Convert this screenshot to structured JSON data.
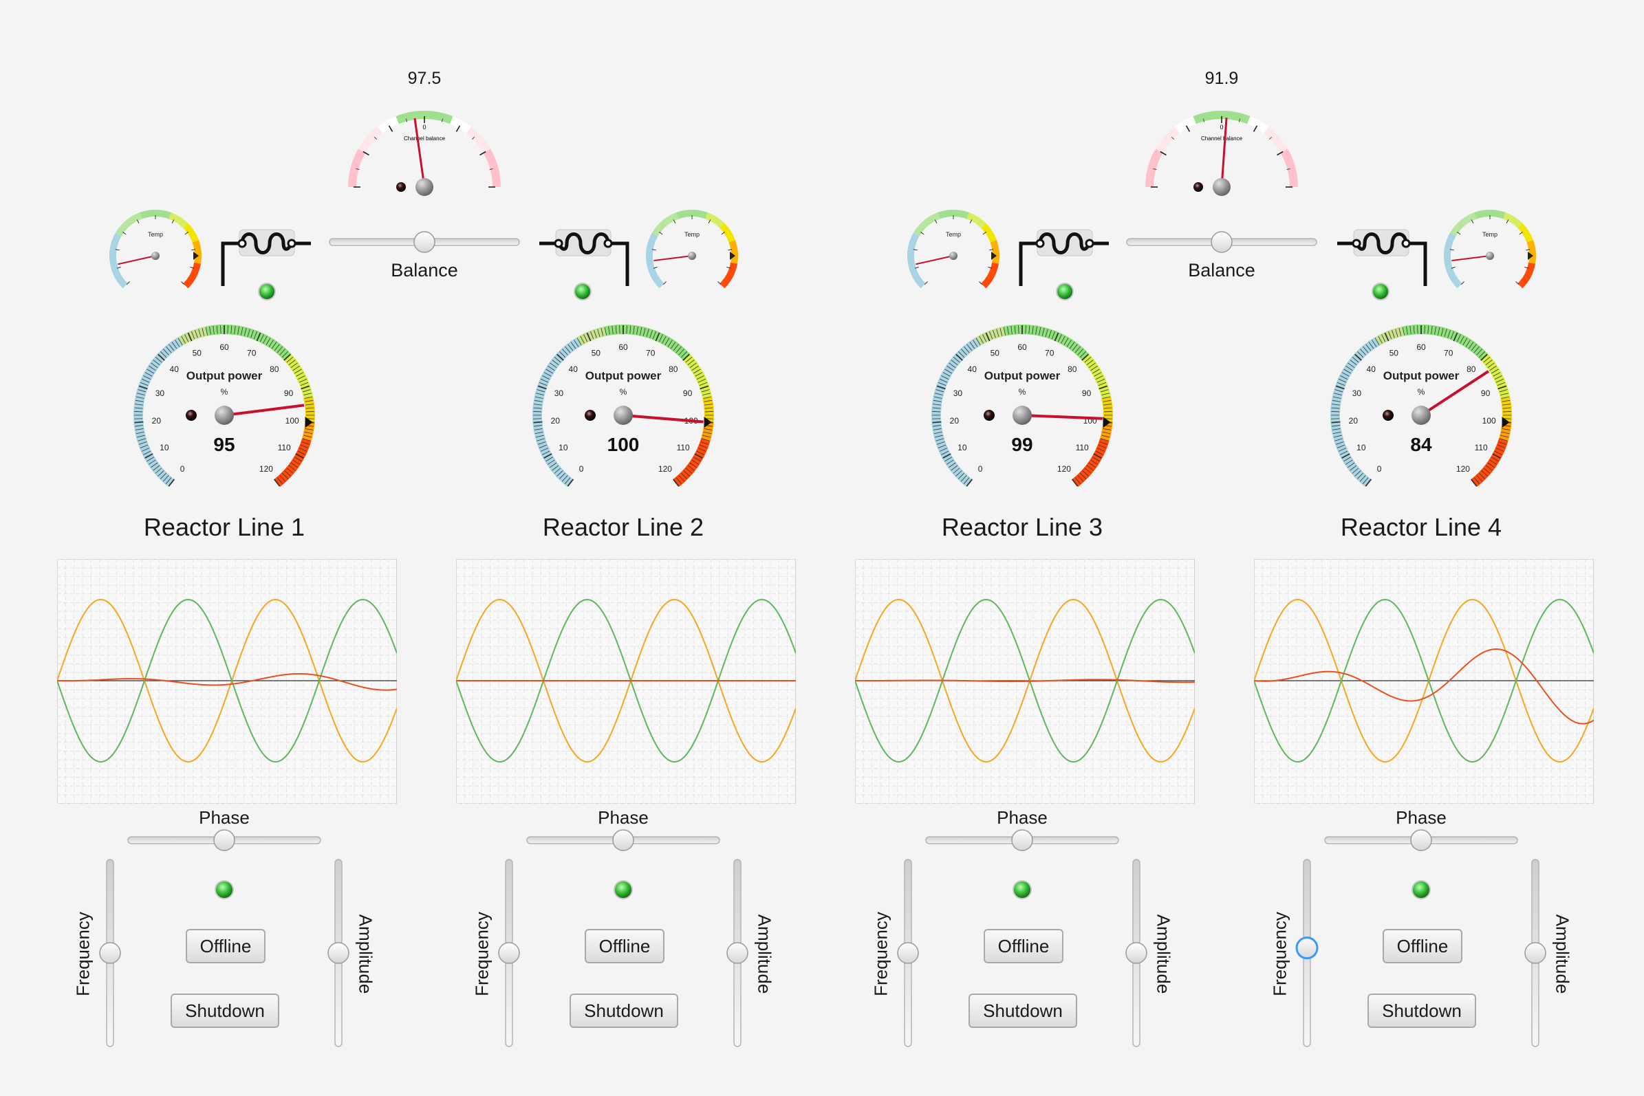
{
  "balance_panels": [
    {
      "value": "97.5",
      "gauge_title": "Channel balance",
      "center_tick": "0",
      "needle_deg": -8,
      "slider_label": "Balance",
      "slider_position": 0.5
    },
    {
      "value": "91.9",
      "gauge_title": "Channel balance",
      "center_tick": "0",
      "needle_deg": 4,
      "slider_label": "Balance",
      "slider_position": 0.5
    }
  ],
  "reactors": [
    {
      "title": "Reactor Line 1",
      "output_value": "95",
      "output_percent": 95,
      "temp_label": "Temp",
      "temp_level": 0.12,
      "phase_label": "Phase",
      "phase_position": 0.5,
      "frequency_label": "Frequency",
      "frequency_position": 0.5,
      "amplitude_label": "Amplitude",
      "amplitude_position": 0.5,
      "offline_label": "Offline",
      "shutdown_label": "Shutdown",
      "wave_amplitude": 0.12,
      "frequency_focused": false
    },
    {
      "title": "Reactor Line 2",
      "output_value": "100",
      "output_percent": 100,
      "temp_label": "Temp",
      "temp_level": 0.14,
      "phase_label": "Phase",
      "phase_position": 0.5,
      "frequency_label": "Frequency",
      "frequency_position": 0.5,
      "amplitude_label": "Amplitude",
      "amplitude_position": 0.5,
      "offline_label": "Offline",
      "shutdown_label": "Shutdown",
      "wave_amplitude": 0.0,
      "frequency_focused": false
    },
    {
      "title": "Reactor Line 3",
      "output_value": "99",
      "output_percent": 99,
      "temp_label": "Temp",
      "temp_level": 0.12,
      "phase_label": "Phase",
      "phase_position": 0.5,
      "frequency_label": "Frequency",
      "frequency_position": 0.5,
      "amplitude_label": "Amplitude",
      "amplitude_position": 0.5,
      "offline_label": "Offline",
      "shutdown_label": "Shutdown",
      "wave_amplitude": 0.02,
      "frequency_focused": false
    },
    {
      "title": "Reactor Line 4",
      "output_value": "84",
      "output_percent": 84,
      "temp_label": "Temp",
      "temp_level": 0.14,
      "phase_label": "Phase",
      "phase_position": 0.5,
      "frequency_label": "Frequency",
      "frequency_position": 0.53,
      "amplitude_label": "Amplitude",
      "amplitude_position": 0.5,
      "offline_label": "Offline",
      "shutdown_label": "Shutdown",
      "wave_amplitude": 0.55,
      "frequency_focused": true
    }
  ],
  "output_gauge": {
    "title": "Output power",
    "unit": "%",
    "ticks": [
      "0",
      "10",
      "20",
      "30",
      "40",
      "50",
      "60",
      "70",
      "80",
      "90",
      "100",
      "110",
      "120"
    ]
  },
  "colors": {
    "wave_orange": "#f5a623",
    "wave_green": "#5cb85c",
    "wave_red": "#e8501e",
    "needle": "#c8102e",
    "led_green": "#2fb82f"
  }
}
